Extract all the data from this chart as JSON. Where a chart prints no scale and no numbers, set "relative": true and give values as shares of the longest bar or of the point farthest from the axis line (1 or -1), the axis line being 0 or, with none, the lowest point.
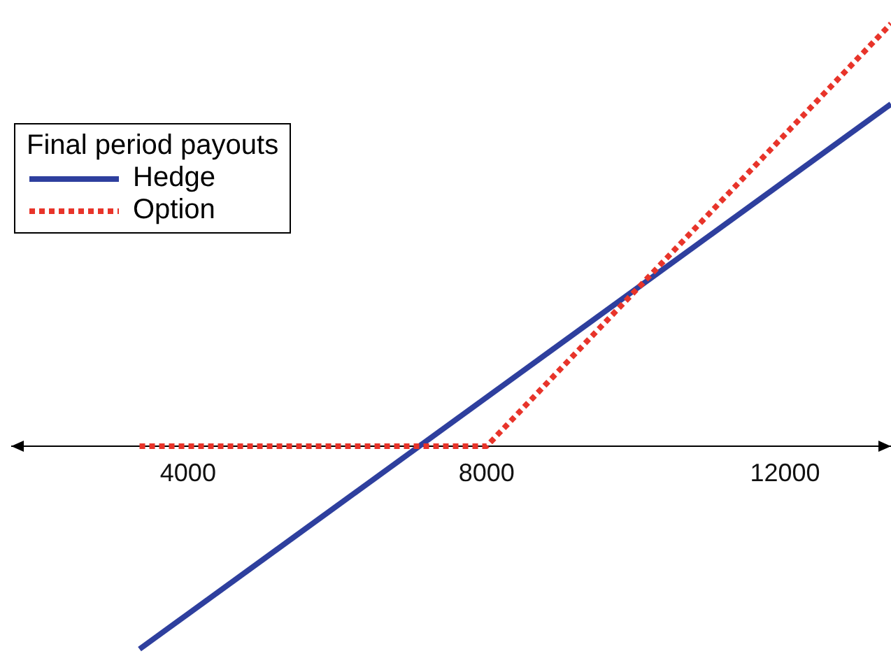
{
  "chart_data": {
    "type": "line",
    "relative": true,
    "xlim": [
      1630,
      13420
    ],
    "xticks": [
      4000,
      8000,
      12000
    ],
    "legend": "top left",
    "legend_title": "Final period payouts",
    "grid": false,
    "marker": "none",
    "series": [
      {
        "name": "Hedge",
        "color": "#2e3f9e",
        "line_style": "solid",
        "x": [
          3350,
          13420
        ],
        "values": [
          -0.48,
          0.81
        ]
      },
      {
        "name": "Option",
        "color": "#e8342a",
        "line_style": "dotted",
        "x": [
          3350,
          8000,
          13420
        ],
        "values": [
          0,
          0,
          1
        ]
      }
    ]
  }
}
